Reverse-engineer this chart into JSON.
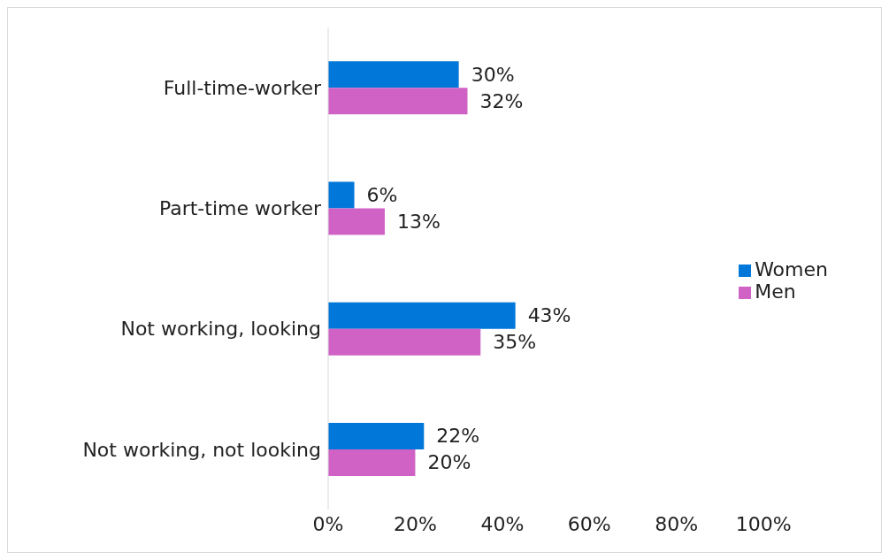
{
  "chart_data": {
    "type": "bar",
    "orientation": "horizontal",
    "categories": [
      "Full-time-worker",
      "Part-time worker",
      "Not working, looking",
      "Not working, not looking"
    ],
    "series": [
      {
        "name": "Women",
        "color": "#0077d9",
        "values": [
          30,
          6,
          43,
          22
        ],
        "value_labels": [
          "30%",
          "6%",
          "43%",
          "22%"
        ]
      },
      {
        "name": "Men",
        "color": "#d062c6",
        "values": [
          32,
          13,
          35,
          20
        ],
        "value_labels": [
          "32%",
          "13%",
          "35%",
          "20%"
        ]
      }
    ],
    "xlim": [
      0,
      100
    ],
    "xticks": [
      {
        "value": 0,
        "label": "0%"
      },
      {
        "value": 20,
        "label": "20%"
      },
      {
        "value": 40,
        "label": "40%"
      },
      {
        "value": 60,
        "label": "60%"
      },
      {
        "value": 80,
        "label": "80%"
      },
      {
        "value": 100,
        "label": "100%"
      }
    ],
    "grid": false,
    "legend": "right"
  }
}
